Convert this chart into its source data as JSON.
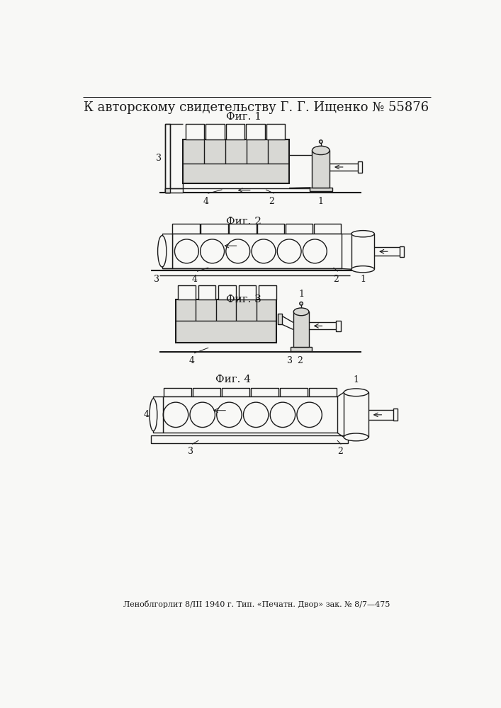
{
  "title": "К авторскому свидетельству Г. Г. Ищенко № 55876",
  "footer": "Леноблгорлит 8/III 1940 г. Тип. «Печатн. Двор» зак. № 8/7—475",
  "fig_labels": [
    "Фиг. 1",
    "Фиг. 2",
    "Фиг. 3",
    "Фиг. 4"
  ],
  "bg_color": "#f8f8f6",
  "line_color": "#1a1a1a",
  "title_fontsize": 13,
  "fig_label_fontsize": 11
}
